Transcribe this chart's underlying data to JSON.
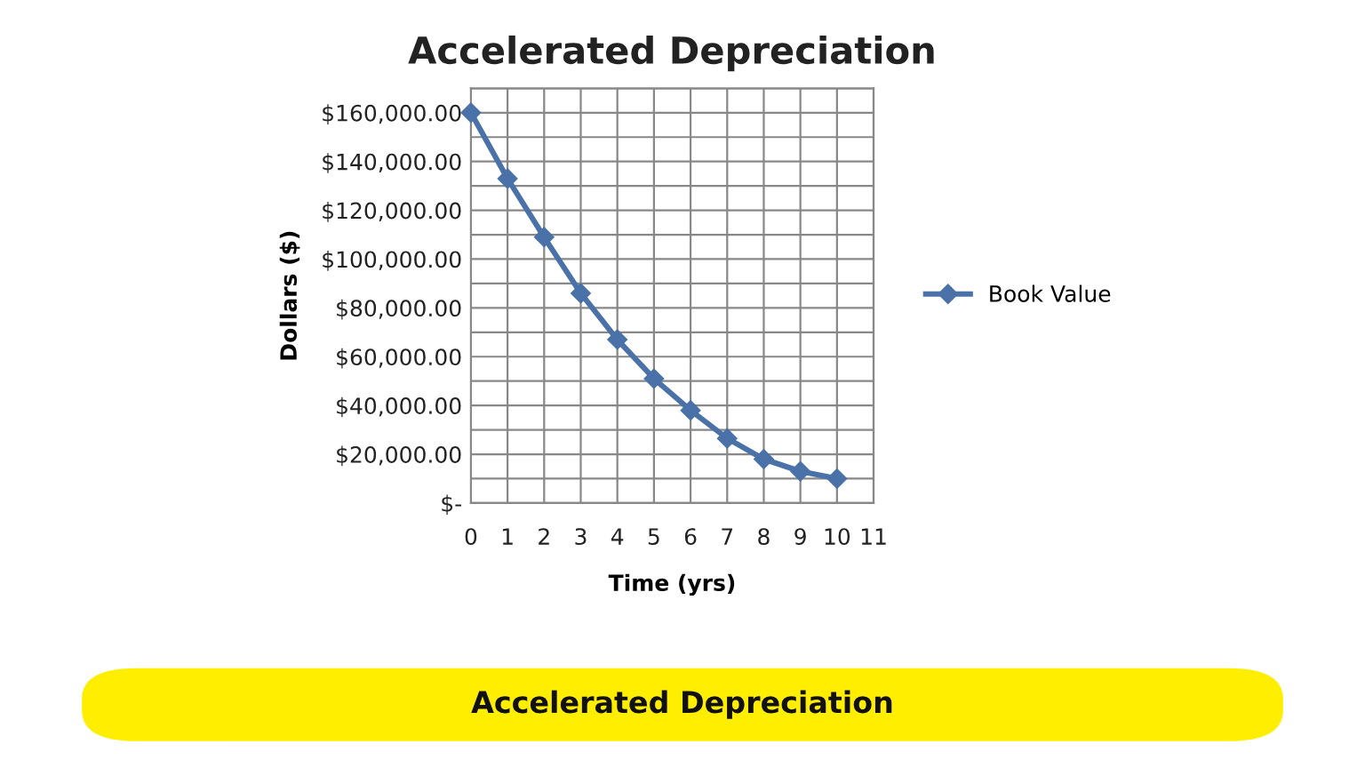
{
  "chart_data": {
    "type": "line",
    "title": "Accelerated Depreciation",
    "xlabel": "Time (yrs)",
    "ylabel": "Dollars ($)",
    "x": [
      0,
      1,
      2,
      3,
      4,
      5,
      6,
      7,
      8,
      9,
      10
    ],
    "series": [
      {
        "name": "Book Value",
        "color": "#4a72a8",
        "values": [
          160000,
          133000,
          109000,
          86000,
          67000,
          51000,
          38000,
          26500,
          18000,
          13000,
          10000
        ]
      }
    ],
    "xlim": [
      0,
      11
    ],
    "xticks": [
      0,
      1,
      2,
      3,
      4,
      5,
      6,
      7,
      8,
      9,
      10,
      11
    ],
    "ylim": [
      0,
      170000
    ],
    "yticks": [
      {
        "value": 0,
        "label": "$-"
      },
      {
        "value": 10000,
        "label": null
      },
      {
        "value": 20000,
        "label": "$20,000.00"
      },
      {
        "value": 30000,
        "label": null
      },
      {
        "value": 40000,
        "label": "$40,000.00"
      },
      {
        "value": 50000,
        "label": null
      },
      {
        "value": 60000,
        "label": "$60,000.00"
      },
      {
        "value": 70000,
        "label": null
      },
      {
        "value": 80000,
        "label": "$80,000.00"
      },
      {
        "value": 90000,
        "label": null
      },
      {
        "value": 100000,
        "label": "$100,000.00"
      },
      {
        "value": 110000,
        "label": null
      },
      {
        "value": 120000,
        "label": "$120,000.00"
      },
      {
        "value": 130000,
        "label": null
      },
      {
        "value": 140000,
        "label": "$140,000.00"
      },
      {
        "value": 150000,
        "label": null
      },
      {
        "value": 160000,
        "label": "$160,000.00"
      },
      {
        "value": 170000,
        "label": null
      }
    ],
    "grid": true,
    "legend": "right",
    "marker": "diamond",
    "line_style": "solid",
    "annotations": [
      "Accelerated Depreciation"
    ]
  }
}
